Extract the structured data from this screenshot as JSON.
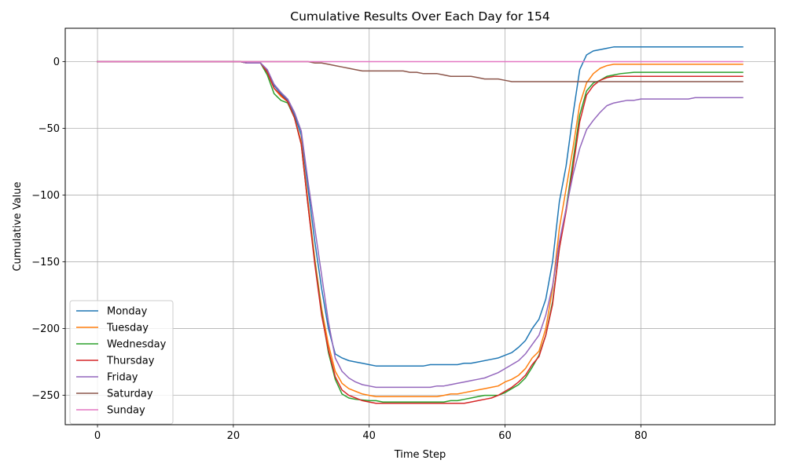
{
  "chart_data": {
    "type": "line",
    "title": "Cumulative Results Over Each Day for 154",
    "xlabel": "Time Step",
    "ylabel": "Cumulative Value",
    "xlim": [
      -4.75,
      99.75
    ],
    "ylim": [
      -272,
      25
    ],
    "xticks": [
      0,
      20,
      40,
      60,
      80
    ],
    "yticks": [
      0,
      -50,
      -100,
      -150,
      -200,
      -250
    ],
    "grid": true,
    "legend_position": "lower-left",
    "series": [
      {
        "name": "Monday",
        "color": "#1f77b4",
        "points": [
          [
            0,
            0
          ],
          [
            21,
            0
          ],
          [
            22,
            -1
          ],
          [
            24,
            -1
          ],
          [
            25,
            -7
          ],
          [
            26,
            -18
          ],
          [
            27,
            -24
          ],
          [
            28,
            -29
          ],
          [
            29,
            -40
          ],
          [
            30,
            -55
          ],
          [
            31,
            -95
          ],
          [
            32,
            -135
          ],
          [
            33,
            -170
          ],
          [
            34,
            -200
          ],
          [
            35,
            -219
          ],
          [
            36,
            -222
          ],
          [
            37,
            -224
          ],
          [
            38,
            -225
          ],
          [
            39,
            -226
          ],
          [
            40,
            -227
          ],
          [
            41,
            -228
          ],
          [
            48,
            -228
          ],
          [
            49,
            -227
          ],
          [
            53,
            -227
          ],
          [
            54,
            -226
          ],
          [
            55,
            -226
          ],
          [
            56,
            -225
          ],
          [
            58,
            -223
          ],
          [
            59,
            -222
          ],
          [
            60,
            -220
          ],
          [
            61,
            -218
          ],
          [
            62,
            -214
          ],
          [
            63,
            -209
          ],
          [
            64,
            -200
          ],
          [
            65,
            -193
          ],
          [
            66,
            -178
          ],
          [
            67,
            -150
          ],
          [
            68,
            -105
          ],
          [
            69,
            -78
          ],
          [
            70,
            -40
          ],
          [
            71,
            -6
          ],
          [
            72,
            5
          ],
          [
            73,
            8
          ],
          [
            74,
            9
          ],
          [
            75,
            10
          ],
          [
            76,
            11
          ],
          [
            95,
            11
          ]
        ]
      },
      {
        "name": "Tuesday",
        "color": "#ff7f0e",
        "points": [
          [
            0,
            0
          ],
          [
            21,
            0
          ],
          [
            22,
            -1
          ],
          [
            24,
            -1
          ],
          [
            25,
            -8
          ],
          [
            26,
            -20
          ],
          [
            27,
            -26
          ],
          [
            28,
            -30
          ],
          [
            29,
            -42
          ],
          [
            30,
            -60
          ],
          [
            31,
            -105
          ],
          [
            32,
            -148
          ],
          [
            33,
            -185
          ],
          [
            34,
            -212
          ],
          [
            35,
            -232
          ],
          [
            36,
            -241
          ],
          [
            37,
            -245
          ],
          [
            38,
            -247
          ],
          [
            39,
            -249
          ],
          [
            40,
            -250
          ],
          [
            41,
            -251
          ],
          [
            50,
            -251
          ],
          [
            51,
            -250
          ],
          [
            52,
            -249
          ],
          [
            53,
            -249
          ],
          [
            54,
            -248
          ],
          [
            55,
            -247
          ],
          [
            56,
            -246
          ],
          [
            57,
            -245
          ],
          [
            58,
            -244
          ],
          [
            59,
            -243
          ],
          [
            60,
            -240
          ],
          [
            61,
            -238
          ],
          [
            62,
            -235
          ],
          [
            63,
            -230
          ],
          [
            64,
            -222
          ],
          [
            65,
            -217
          ],
          [
            66,
            -200
          ],
          [
            67,
            -170
          ],
          [
            68,
            -125
          ],
          [
            69,
            -95
          ],
          [
            70,
            -65
          ],
          [
            71,
            -32
          ],
          [
            72,
            -16
          ],
          [
            73,
            -9
          ],
          [
            74,
            -5
          ],
          [
            75,
            -3
          ],
          [
            76,
            -2
          ],
          [
            95,
            -2
          ]
        ]
      },
      {
        "name": "Wednesday",
        "color": "#2ca02c",
        "points": [
          [
            0,
            0
          ],
          [
            21,
            0
          ],
          [
            22,
            -1
          ],
          [
            24,
            -1
          ],
          [
            25,
            -10
          ],
          [
            26,
            -24
          ],
          [
            27,
            -29
          ],
          [
            28,
            -31
          ],
          [
            29,
            -42
          ],
          [
            30,
            -62
          ],
          [
            31,
            -108
          ],
          [
            32,
            -150
          ],
          [
            33,
            -188
          ],
          [
            34,
            -218
          ],
          [
            35,
            -238
          ],
          [
            36,
            -249
          ],
          [
            37,
            -252
          ],
          [
            38,
            -253
          ],
          [
            40,
            -254
          ],
          [
            41,
            -254
          ],
          [
            42,
            -255
          ],
          [
            51,
            -255
          ],
          [
            52,
            -254
          ],
          [
            53,
            -254
          ],
          [
            54,
            -253
          ],
          [
            55,
            -252
          ],
          [
            56,
            -251
          ],
          [
            57,
            -250
          ],
          [
            59,
            -250
          ],
          [
            60,
            -248
          ],
          [
            61,
            -245
          ],
          [
            62,
            -242
          ],
          [
            63,
            -237
          ],
          [
            64,
            -229
          ],
          [
            65,
            -220
          ],
          [
            66,
            -205
          ],
          [
            67,
            -180
          ],
          [
            68,
            -140
          ],
          [
            69,
            -110
          ],
          [
            70,
            -75
          ],
          [
            71,
            -40
          ],
          [
            72,
            -22
          ],
          [
            73,
            -16
          ],
          [
            74,
            -14
          ],
          [
            75,
            -11
          ],
          [
            76,
            -10
          ],
          [
            77,
            -9
          ],
          [
            79,
            -8
          ],
          [
            95,
            -8
          ]
        ]
      },
      {
        "name": "Thursday",
        "color": "#d62728",
        "points": [
          [
            0,
            0
          ],
          [
            21,
            0
          ],
          [
            22,
            -1
          ],
          [
            24,
            -1
          ],
          [
            25,
            -8
          ],
          [
            26,
            -20
          ],
          [
            27,
            -25
          ],
          [
            28,
            -30
          ],
          [
            29,
            -42
          ],
          [
            30,
            -62
          ],
          [
            31,
            -108
          ],
          [
            32,
            -152
          ],
          [
            33,
            -190
          ],
          [
            34,
            -216
          ],
          [
            35,
            -236
          ],
          [
            36,
            -246
          ],
          [
            37,
            -250
          ],
          [
            38,
            -252
          ],
          [
            39,
            -254
          ],
          [
            40,
            -255
          ],
          [
            41,
            -256
          ],
          [
            54,
            -256
          ],
          [
            55,
            -255
          ],
          [
            56,
            -254
          ],
          [
            57,
            -253
          ],
          [
            58,
            -252
          ],
          [
            59,
            -250
          ],
          [
            60,
            -247
          ],
          [
            61,
            -244
          ],
          [
            62,
            -240
          ],
          [
            63,
            -235
          ],
          [
            64,
            -227
          ],
          [
            65,
            -221
          ],
          [
            66,
            -205
          ],
          [
            67,
            -182
          ],
          [
            68,
            -140
          ],
          [
            69,
            -112
          ],
          [
            70,
            -80
          ],
          [
            71,
            -45
          ],
          [
            72,
            -25
          ],
          [
            73,
            -18
          ],
          [
            74,
            -14
          ],
          [
            75,
            -12
          ],
          [
            76,
            -11
          ],
          [
            95,
            -11
          ]
        ]
      },
      {
        "name": "Friday",
        "color": "#9467bd",
        "points": [
          [
            0,
            0
          ],
          [
            21,
            0
          ],
          [
            22,
            -1
          ],
          [
            24,
            -1
          ],
          [
            25,
            -6
          ],
          [
            26,
            -17
          ],
          [
            27,
            -23
          ],
          [
            28,
            -28
          ],
          [
            29,
            -38
          ],
          [
            30,
            -52
          ],
          [
            31,
            -90
          ],
          [
            32,
            -125
          ],
          [
            33,
            -160
          ],
          [
            34,
            -195
          ],
          [
            35,
            -222
          ],
          [
            36,
            -232
          ],
          [
            37,
            -237
          ],
          [
            38,
            -240
          ],
          [
            39,
            -242
          ],
          [
            40,
            -243
          ],
          [
            41,
            -244
          ],
          [
            49,
            -244
          ],
          [
            50,
            -243
          ],
          [
            51,
            -243
          ],
          [
            52,
            -242
          ],
          [
            53,
            -241
          ],
          [
            54,
            -240
          ],
          [
            55,
            -239
          ],
          [
            56,
            -238
          ],
          [
            57,
            -237
          ],
          [
            58,
            -235
          ],
          [
            59,
            -233
          ],
          [
            60,
            -230
          ],
          [
            61,
            -227
          ],
          [
            62,
            -224
          ],
          [
            63,
            -219
          ],
          [
            64,
            -212
          ],
          [
            65,
            -205
          ],
          [
            66,
            -190
          ],
          [
            67,
            -168
          ],
          [
            68,
            -135
          ],
          [
            69,
            -110
          ],
          [
            70,
            -85
          ],
          [
            71,
            -65
          ],
          [
            72,
            -51
          ],
          [
            73,
            -44
          ],
          [
            74,
            -38
          ],
          [
            75,
            -33
          ],
          [
            76,
            -31
          ],
          [
            77,
            -30
          ],
          [
            78,
            -29
          ],
          [
            79,
            -29
          ],
          [
            80,
            -28
          ],
          [
            87,
            -28
          ],
          [
            88,
            -27
          ],
          [
            95,
            -27
          ]
        ]
      },
      {
        "name": "Saturday",
        "color": "#8c564b",
        "points": [
          [
            0,
            0
          ],
          [
            31,
            0
          ],
          [
            32,
            -1
          ],
          [
            33,
            -1
          ],
          [
            34,
            -2
          ],
          [
            35,
            -3
          ],
          [
            36,
            -4
          ],
          [
            37,
            -5
          ],
          [
            38,
            -6
          ],
          [
            39,
            -7
          ],
          [
            45,
            -7
          ],
          [
            46,
            -8
          ],
          [
            47,
            -8
          ],
          [
            48,
            -9
          ],
          [
            50,
            -9
          ],
          [
            51,
            -10
          ],
          [
            52,
            -11
          ],
          [
            55,
            -11
          ],
          [
            56,
            -12
          ],
          [
            57,
            -13
          ],
          [
            59,
            -13
          ],
          [
            60,
            -14
          ],
          [
            61,
            -15
          ],
          [
            95,
            -15
          ]
        ]
      },
      {
        "name": "Sunday",
        "color": "#e377c2",
        "points": [
          [
            0,
            0
          ],
          [
            95,
            0
          ]
        ]
      }
    ]
  }
}
